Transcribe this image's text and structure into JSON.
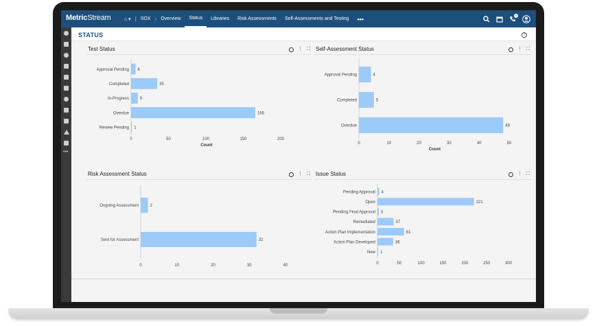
{
  "app": {
    "logo_main": "Metric",
    "logo_sub": "Stream"
  },
  "nav": {
    "home": "⌂ ▾",
    "items": [
      "SOX",
      "Overview",
      "Status",
      "Libraries",
      "Risk Assessments",
      "Self-Assessments and Testing"
    ],
    "active": "Status",
    "more": "•••"
  },
  "header_icons": {
    "notifications_badge": "9"
  },
  "page": {
    "title": "STATUS",
    "help": "?"
  },
  "colors": {
    "nav_bg": "#1d4f7c",
    "bar": "#9ccaf9",
    "sidebar_bg": "#3a3a3a"
  },
  "panels": {
    "test_status": {
      "title": "Test Status"
    },
    "self_assessment_status": {
      "title": "Self-Assessment Status"
    },
    "risk_assessment_status": {
      "title": "Risk Assessment Status"
    },
    "issue_status": {
      "title": "Issue Status"
    }
  },
  "chart_data": [
    {
      "type": "bar",
      "orientation": "horizontal",
      "title": "Test Status",
      "categories": [
        "Approval Pending",
        "Completed",
        "In-Progress",
        "Overdue",
        "Review Pending"
      ],
      "values": [
        6,
        35,
        9,
        166,
        1
      ],
      "xlabel": "Count",
      "xlim": [
        0,
        200
      ],
      "ticks": [
        0,
        50,
        100,
        150,
        200
      ]
    },
    {
      "type": "bar",
      "orientation": "horizontal",
      "title": "Self-Assessment Status",
      "categories": [
        "Approval Pending",
        "Completed",
        "Overdue"
      ],
      "values": [
        4,
        5,
        48
      ],
      "xlabel": "Count",
      "xlim": [
        0,
        50
      ],
      "ticks": [
        0,
        10,
        20,
        30,
        40,
        50
      ]
    },
    {
      "type": "bar",
      "orientation": "horizontal",
      "title": "Risk Assessment Status",
      "categories": [
        "Ongoing Assessment",
        "Sent for Assessment"
      ],
      "values": [
        2,
        32
      ],
      "xlabel": "",
      "xlim": [
        0,
        40
      ],
      "ticks": [
        0,
        10,
        20,
        30,
        40
      ]
    },
    {
      "type": "bar",
      "orientation": "horizontal",
      "title": "Issue Status",
      "categories": [
        "Pending Approval",
        "Open",
        "Pending Final Approval",
        "Remediated",
        "Action Plan Implementation",
        "Action Plan Developed",
        "New"
      ],
      "values": [
        4,
        221,
        3,
        37,
        61,
        36,
        1
      ],
      "xlabel": "",
      "xlim": [
        0,
        300
      ],
      "ticks": [
        0,
        50,
        100,
        150,
        200,
        250,
        300
      ]
    }
  ]
}
